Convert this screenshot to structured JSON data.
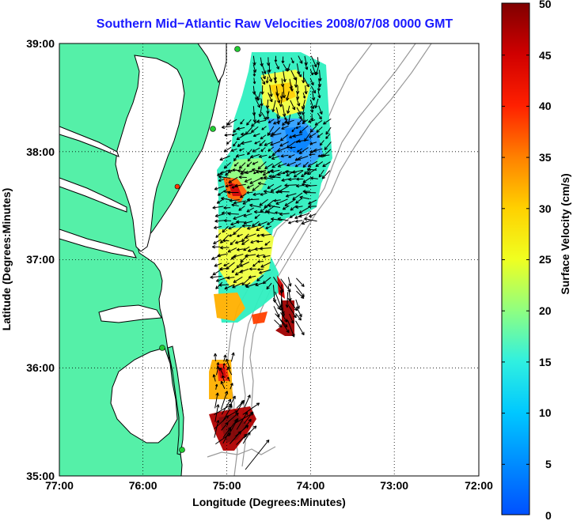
{
  "title": "Southern Mid−Atlantic Raw Velocities 2008/07/08 0000 GMT",
  "axes": {
    "xlabel": "Longitude (Degrees:Minutes)",
    "ylabel": "Latitude (Degrees:Minutes)",
    "x_ticks": [
      "77:00",
      "76:00",
      "75:00",
      "74:00",
      "73:00",
      "72:00"
    ],
    "y_ticks": [
      "39:00",
      "38:00",
      "37:00",
      "36:00",
      "35:00"
    ],
    "x_range": [
      -77,
      -72
    ],
    "y_range": [
      35,
      39
    ],
    "grid": "dotted"
  },
  "colorbar": {
    "label": "Surface Velocity (cm/s)",
    "ticks": [
      "50",
      "45",
      "40",
      "35",
      "30",
      "25",
      "20",
      "15",
      "10",
      "5",
      "0"
    ],
    "range": [
      0,
      50
    ]
  },
  "colors": {
    "land": "#55f0a8",
    "water": "#ffffff",
    "title": "#1a1aff",
    "vectors": "#000000",
    "bathymetry": "#999999",
    "station": "#22cc33",
    "station_alt": "#ff3300"
  }
}
